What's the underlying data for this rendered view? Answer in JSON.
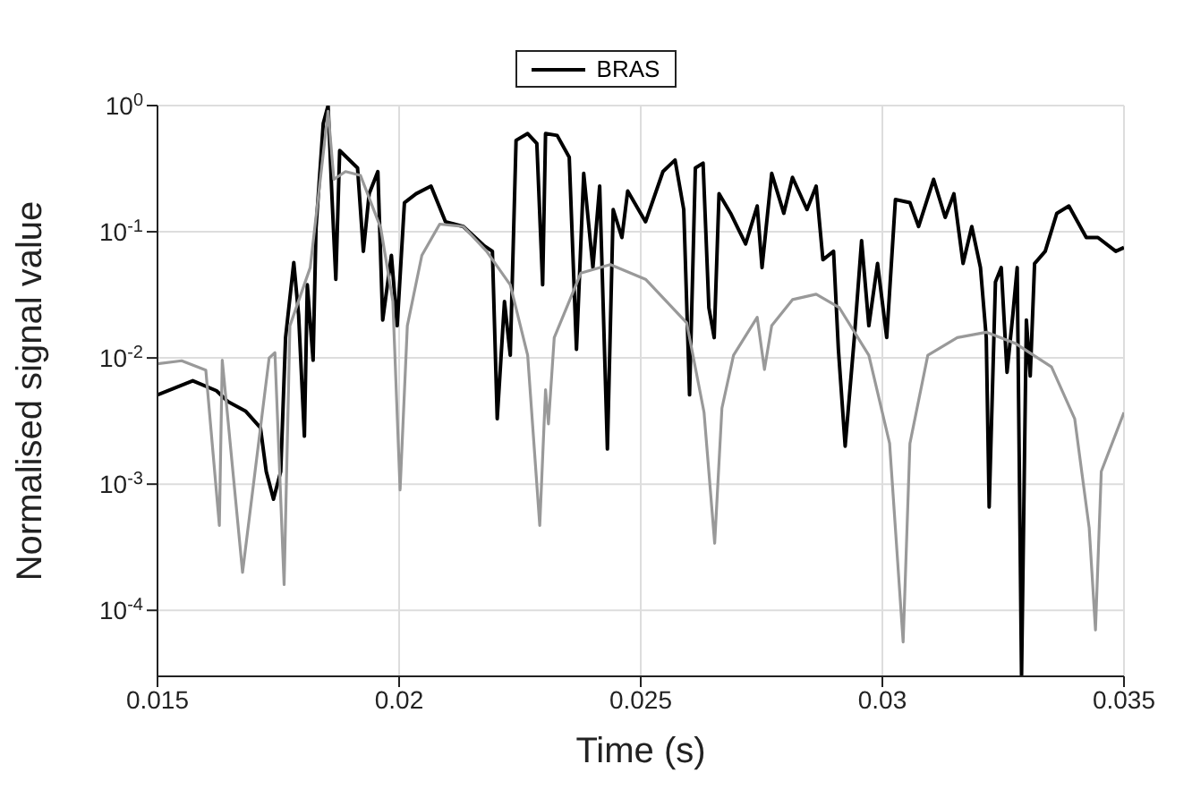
{
  "chart_data": {
    "type": "line",
    "xlabel": "Time (s)",
    "ylabel": "Normalised signal value",
    "log": "y",
    "grid": true,
    "legend": "top",
    "marker": "none",
    "line_style": "solid",
    "xlim": [
      0.015,
      0.035
    ],
    "xticks": [
      0.015,
      0.02,
      0.025,
      0.03,
      0.035
    ],
    "ylim": [
      3e-05,
      1
    ],
    "yticks": [
      {
        "value": 0.0001,
        "label": "10$^{-4}$"
      },
      {
        "value": 0.001,
        "label": "10$^{-3}$"
      },
      {
        "value": 0.01,
        "label": "10$^{-2}$"
      },
      {
        "value": 0.1,
        "label": "10$^{-1}$"
      },
      {
        "value": 1,
        "label": "10$^{0}$"
      }
    ],
    "series": [
      {
        "name": "BRAS",
        "color": "#000000",
        "x": [
          0.015,
          0.01573,
          0.01622,
          0.01646,
          0.01682,
          0.01713,
          0.01725,
          0.0174,
          0.01755,
          0.01765,
          0.01782,
          0.01792,
          0.01804,
          0.0181,
          0.01822,
          0.01828,
          0.01843,
          0.01853,
          0.01861,
          0.01869,
          0.01877,
          0.01914,
          0.01926,
          0.01938,
          0.01956,
          0.01966,
          0.01984,
          0.01996,
          0.02011,
          0.02035,
          0.02066,
          0.02096,
          0.02133,
          0.02175,
          0.02193,
          0.02203,
          0.02218,
          0.0223,
          0.02242,
          0.02266,
          0.02285,
          0.02297,
          0.02303,
          0.02327,
          0.02352,
          0.02367,
          0.02382,
          0.02401,
          0.02415,
          0.02431,
          0.02443,
          0.02461,
          0.02473,
          0.0251,
          0.02546,
          0.02571,
          0.02589,
          0.02601,
          0.02613,
          0.02629,
          0.02641,
          0.02652,
          0.02662,
          0.02686,
          0.02717,
          0.02741,
          0.02751,
          0.02771,
          0.02796,
          0.02814,
          0.02844,
          0.02863,
          0.02877,
          0.02899,
          0.02909,
          0.02923,
          0.02942,
          0.02957,
          0.02972,
          0.0299,
          0.03009,
          0.03027,
          0.03057,
          0.03075,
          0.03106,
          0.0313,
          0.03148,
          0.03167,
          0.03185,
          0.03203,
          0.03215,
          0.03221,
          0.03234,
          0.03246,
          0.03258,
          0.0327,
          0.03279,
          0.03288,
          0.03298,
          0.03306,
          0.03315,
          0.03337,
          0.03361,
          0.03386,
          0.03422,
          0.03446,
          0.03483,
          0.035
        ],
        "values": [
          0.0051,
          0.0066,
          0.0055,
          0.0045,
          0.0038,
          0.0028,
          0.00126,
          0.00076,
          0.00126,
          0.0145,
          0.057,
          0.022,
          0.0024,
          0.038,
          0.0096,
          0.107,
          0.72,
          1.0,
          0.19,
          0.042,
          0.44,
          0.32,
          0.07,
          0.2,
          0.3,
          0.02,
          0.065,
          0.018,
          0.17,
          0.2,
          0.23,
          0.12,
          0.11,
          0.078,
          0.07,
          0.0033,
          0.028,
          0.0105,
          0.53,
          0.6,
          0.5,
          0.038,
          0.6,
          0.58,
          0.39,
          0.0117,
          0.29,
          0.052,
          0.23,
          0.0019,
          0.15,
          0.09,
          0.21,
          0.12,
          0.3,
          0.37,
          0.15,
          0.0051,
          0.32,
          0.35,
          0.025,
          0.0145,
          0.2,
          0.14,
          0.08,
          0.16,
          0.052,
          0.29,
          0.14,
          0.27,
          0.15,
          0.23,
          0.06,
          0.07,
          0.0117,
          0.002,
          0.0145,
          0.085,
          0.018,
          0.056,
          0.0145,
          0.18,
          0.17,
          0.11,
          0.26,
          0.13,
          0.2,
          0.056,
          0.11,
          0.052,
          0.0145,
          0.00066,
          0.04,
          0.052,
          0.0077,
          0.022,
          0.052,
          3e-05,
          0.02,
          0.0072,
          0.056,
          0.07,
          0.14,
          0.16,
          0.09,
          0.09,
          0.07,
          0.075
        ]
      },
      {
        "color": "#999999",
        "x": [
          0.015,
          0.0155,
          0.016,
          0.01628,
          0.01634,
          0.01676,
          0.01731,
          0.01743,
          0.01762,
          0.01774,
          0.01816,
          0.01853,
          0.01865,
          0.01889,
          0.0192,
          0.01962,
          0.01987,
          0.02002,
          0.02017,
          0.02047,
          0.02084,
          0.02133,
          0.02181,
          0.0223,
          0.02266,
          0.02291,
          0.02303,
          0.02309,
          0.02321,
          0.02376,
          0.02437,
          0.0251,
          0.02595,
          0.02631,
          0.02653,
          0.02668,
          0.02692,
          0.02741,
          0.02756,
          0.02771,
          0.02814,
          0.02863,
          0.02911,
          0.02972,
          0.03015,
          0.03043,
          0.03057,
          0.03094,
          0.03155,
          0.03215,
          0.03276,
          0.0335,
          0.03398,
          0.03428,
          0.03441,
          0.03453,
          0.035
        ],
        "values": [
          0.009,
          0.0095,
          0.008,
          0.00047,
          0.0096,
          0.0002,
          0.01,
          0.011,
          0.00016,
          0.018,
          0.052,
          0.9,
          0.26,
          0.3,
          0.28,
          0.107,
          0.028,
          0.0009,
          0.018,
          0.065,
          0.115,
          0.11,
          0.07,
          0.038,
          0.0105,
          0.00047,
          0.0056,
          0.003,
          0.0145,
          0.047,
          0.055,
          0.042,
          0.019,
          0.0037,
          0.00034,
          0.004,
          0.0105,
          0.021,
          0.0081,
          0.018,
          0.029,
          0.032,
          0.025,
          0.0105,
          0.0021,
          5.6e-05,
          0.0021,
          0.0105,
          0.0145,
          0.016,
          0.013,
          0.0085,
          0.0033,
          0.00045,
          7e-05,
          0.00126,
          0.0037
        ]
      }
    ]
  }
}
